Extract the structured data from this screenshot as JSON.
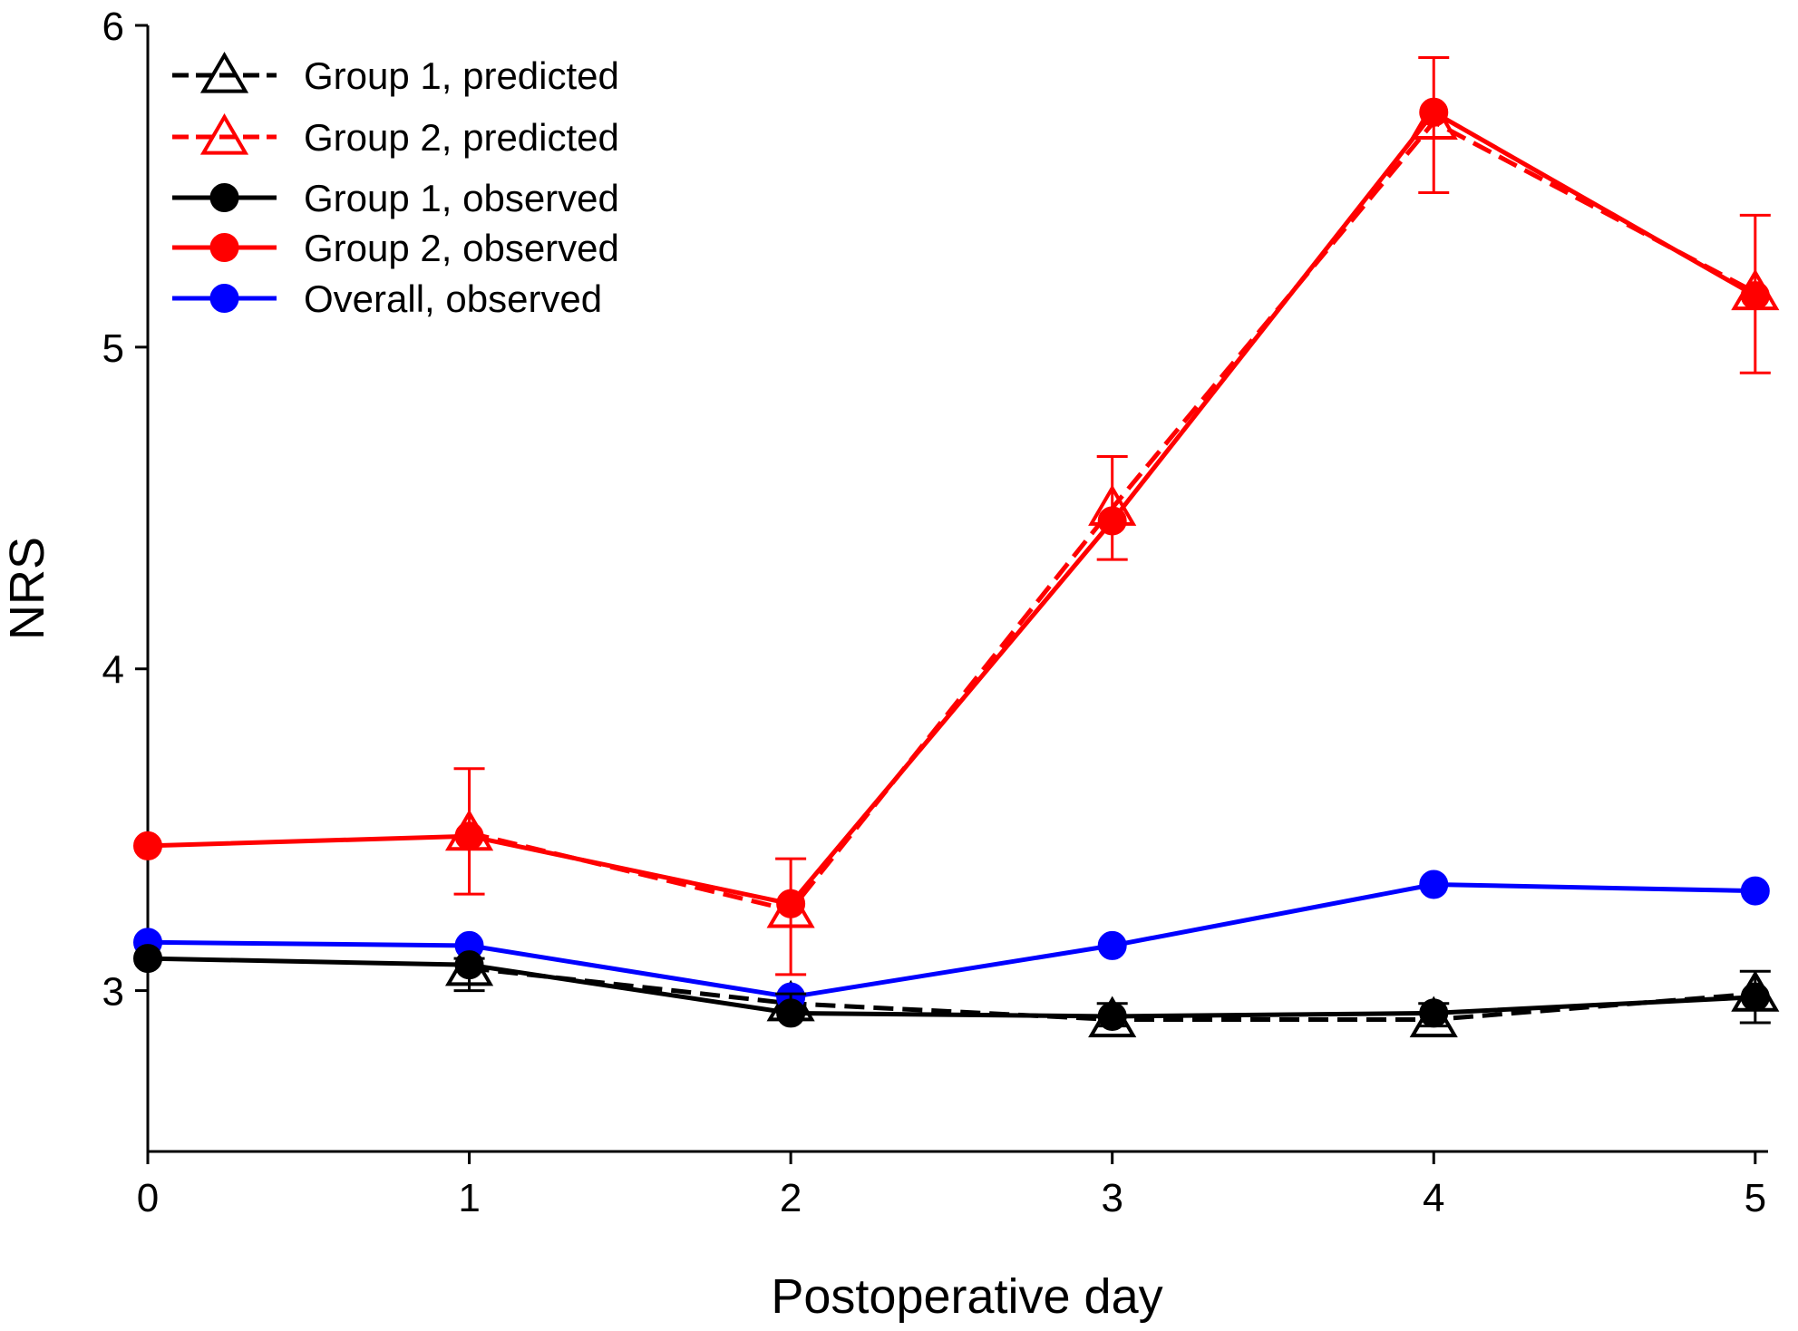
{
  "chart_data": {
    "type": "line",
    "title": "",
    "xlabel": "Postoperative day",
    "ylabel": "NRS",
    "x_ticks": [
      "0",
      "1",
      "2",
      "3",
      "4",
      "5"
    ],
    "y_ticks": [
      "3",
      "4",
      "5",
      "6"
    ],
    "xlim": [
      0,
      5.04
    ],
    "ylim": [
      2.5,
      6
    ],
    "legend_position": "top-left",
    "series": [
      {
        "name": "Group 1, predicted",
        "color": "#000000",
        "line": "dashed",
        "marker": "open-triangle",
        "x": [
          1,
          2,
          3,
          4,
          5
        ],
        "values": [
          3.07,
          2.96,
          2.91,
          2.91,
          2.99
        ]
      },
      {
        "name": "Group 2, predicted",
        "color": "#ff0000",
        "line": "dashed",
        "marker": "open-triangle",
        "x": [
          1,
          2,
          3,
          4,
          5
        ],
        "values": [
          3.49,
          3.25,
          4.5,
          5.7,
          5.17
        ]
      },
      {
        "name": "Group 1, observed",
        "color": "#000000",
        "line": "solid",
        "marker": "filled-circle",
        "x": [
          0,
          1,
          2,
          3,
          4,
          5
        ],
        "values": [
          3.1,
          3.08,
          2.93,
          2.92,
          2.93,
          2.98
        ],
        "error_x": [
          1,
          2,
          3,
          4,
          5
        ],
        "error_low": [
          3.0,
          2.94,
          2.89,
          2.89,
          2.9
        ],
        "error_high": [
          3.1,
          2.99,
          2.96,
          2.96,
          3.06
        ]
      },
      {
        "name": "Group 2, observed",
        "color": "#ff0000",
        "line": "solid",
        "marker": "filled-circle",
        "x": [
          0,
          1,
          2,
          3,
          4,
          5
        ],
        "values": [
          3.45,
          3.48,
          3.27,
          4.46,
          5.73,
          5.16
        ],
        "error_x": [
          1,
          2,
          3,
          4,
          5
        ],
        "error_low": [
          3.3,
          3.05,
          4.34,
          5.48,
          4.92
        ],
        "error_high": [
          3.69,
          3.41,
          4.66,
          5.9,
          5.41
        ]
      },
      {
        "name": "Overall, observed",
        "color": "#0000ff",
        "line": "solid",
        "marker": "filled-circle",
        "x": [
          0,
          1,
          2,
          3,
          4,
          5
        ],
        "values": [
          3.15,
          3.14,
          2.98,
          3.14,
          3.33,
          3.31
        ]
      }
    ]
  }
}
